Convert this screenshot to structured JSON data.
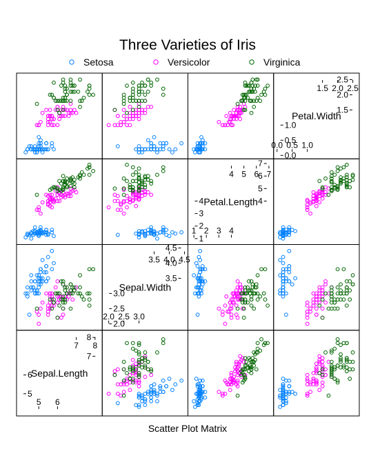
{
  "chart_data": {
    "type": "scatter",
    "title": "Three Varieties of Iris",
    "subtitle": "Scatter Plot Matrix",
    "legend": {
      "position": "top",
      "entries": [
        {
          "name": "Setosa",
          "color": "#0080ff"
        },
        {
          "name": "Versicolor",
          "color": "#ff00ff"
        },
        {
          "name": "Virginica",
          "color": "#006400"
        }
      ]
    },
    "variables": [
      {
        "name": "Sepal.Length",
        "range": [
          4.0,
          8.2
        ],
        "diag_ticks_low": [
          "5",
          "6"
        ],
        "diag_ticks_high": [
          "7",
          "8"
        ],
        "axis_ticks": [
          "5",
          "6",
          "7",
          "8"
        ]
      },
      {
        "name": "Sepal.Width",
        "range": [
          1.9,
          4.5
        ],
        "diag_ticks_low": [
          "2.0",
          "2.5",
          "3.0"
        ],
        "diag_ticks_high": [
          "3.5",
          "4.0",
          "4.5"
        ],
        "axis_ticks": [
          "2.0",
          "2.5",
          "3.0",
          "3.5",
          "4.0",
          "4.5"
        ]
      },
      {
        "name": "Petal.Length",
        "range": [
          0.8,
          7.1
        ],
        "diag_ticks_low": [
          "1",
          "2",
          "3",
          "4"
        ],
        "diag_ticks_high": [
          "4",
          "5",
          "6",
          "7"
        ],
        "axis_ticks": [
          "1",
          "2",
          "3",
          "4",
          "5",
          "6",
          "7"
        ]
      },
      {
        "name": "Petal.Width",
        "range": [
          0.0,
          2.6
        ],
        "diag_ticks_low": [
          "0.0",
          "0.5",
          "1.0"
        ],
        "diag_ticks_high": [
          "1.5",
          "2.0",
          "2.5"
        ],
        "axis_ticks": [
          "0.0",
          "0.5",
          "1.0",
          "1.5",
          "2.0",
          "2.5"
        ]
      }
    ],
    "series": [
      {
        "name": "Setosa",
        "color": "#0080ff",
        "points": [
          [
            5.1,
            3.5,
            1.4,
            0.2
          ],
          [
            4.9,
            3.0,
            1.4,
            0.2
          ],
          [
            4.7,
            3.2,
            1.3,
            0.2
          ],
          [
            4.6,
            3.1,
            1.5,
            0.2
          ],
          [
            5.0,
            3.6,
            1.4,
            0.2
          ],
          [
            5.4,
            3.9,
            1.7,
            0.4
          ],
          [
            4.6,
            3.4,
            1.4,
            0.3
          ],
          [
            5.0,
            3.4,
            1.5,
            0.2
          ],
          [
            4.4,
            2.9,
            1.4,
            0.2
          ],
          [
            4.9,
            3.1,
            1.5,
            0.1
          ],
          [
            5.4,
            3.7,
            1.5,
            0.2
          ],
          [
            4.8,
            3.4,
            1.6,
            0.2
          ],
          [
            4.8,
            3.0,
            1.4,
            0.1
          ],
          [
            4.3,
            3.0,
            1.1,
            0.1
          ],
          [
            5.8,
            4.0,
            1.2,
            0.2
          ],
          [
            5.7,
            4.4,
            1.5,
            0.4
          ],
          [
            5.4,
            3.9,
            1.3,
            0.4
          ],
          [
            5.1,
            3.5,
            1.4,
            0.3
          ],
          [
            5.7,
            3.8,
            1.7,
            0.3
          ],
          [
            5.1,
            3.8,
            1.5,
            0.3
          ],
          [
            5.4,
            3.4,
            1.7,
            0.2
          ],
          [
            5.1,
            3.7,
            1.5,
            0.4
          ],
          [
            4.6,
            3.6,
            1.0,
            0.2
          ],
          [
            5.1,
            3.3,
            1.7,
            0.5
          ],
          [
            4.8,
            3.4,
            1.9,
            0.2
          ],
          [
            5.0,
            3.0,
            1.6,
            0.2
          ],
          [
            5.0,
            3.4,
            1.6,
            0.4
          ],
          [
            5.2,
            3.5,
            1.5,
            0.2
          ],
          [
            5.2,
            3.4,
            1.4,
            0.2
          ],
          [
            4.7,
            3.2,
            1.6,
            0.2
          ],
          [
            4.8,
            3.1,
            1.6,
            0.2
          ],
          [
            5.4,
            3.4,
            1.5,
            0.4
          ],
          [
            5.2,
            4.1,
            1.5,
            0.1
          ],
          [
            5.5,
            4.2,
            1.4,
            0.2
          ],
          [
            4.9,
            3.1,
            1.5,
            0.2
          ],
          [
            5.0,
            3.2,
            1.2,
            0.2
          ],
          [
            5.5,
            3.5,
            1.3,
            0.2
          ],
          [
            4.9,
            3.6,
            1.4,
            0.1
          ],
          [
            4.4,
            3.0,
            1.3,
            0.2
          ],
          [
            5.1,
            3.4,
            1.5,
            0.2
          ],
          [
            5.0,
            3.5,
            1.3,
            0.3
          ],
          [
            4.5,
            2.3,
            1.3,
            0.3
          ],
          [
            4.4,
            3.2,
            1.3,
            0.2
          ],
          [
            5.0,
            3.5,
            1.6,
            0.6
          ],
          [
            5.1,
            3.8,
            1.9,
            0.4
          ],
          [
            4.8,
            3.0,
            1.4,
            0.3
          ],
          [
            5.1,
            3.8,
            1.6,
            0.2
          ],
          [
            4.6,
            3.2,
            1.4,
            0.2
          ],
          [
            5.3,
            3.7,
            1.5,
            0.2
          ],
          [
            5.0,
            3.3,
            1.4,
            0.2
          ]
        ]
      },
      {
        "name": "Versicolor",
        "color": "#ff00ff",
        "points": [
          [
            7.0,
            3.2,
            4.7,
            1.4
          ],
          [
            6.4,
            3.2,
            4.5,
            1.5
          ],
          [
            6.9,
            3.1,
            4.9,
            1.5
          ],
          [
            5.5,
            2.3,
            4.0,
            1.3
          ],
          [
            6.5,
            2.8,
            4.6,
            1.5
          ],
          [
            5.7,
            2.8,
            4.5,
            1.3
          ],
          [
            6.3,
            3.3,
            4.7,
            1.6
          ],
          [
            4.9,
            2.4,
            3.3,
            1.0
          ],
          [
            6.6,
            2.9,
            4.6,
            1.3
          ],
          [
            5.2,
            2.7,
            3.9,
            1.4
          ],
          [
            5.0,
            2.0,
            3.5,
            1.0
          ],
          [
            5.9,
            3.0,
            4.2,
            1.5
          ],
          [
            6.0,
            2.2,
            4.0,
            1.0
          ],
          [
            6.1,
            2.9,
            4.7,
            1.4
          ],
          [
            5.6,
            2.9,
            3.6,
            1.3
          ],
          [
            6.7,
            3.1,
            4.4,
            1.4
          ],
          [
            5.6,
            3.0,
            4.5,
            1.5
          ],
          [
            5.8,
            2.7,
            4.1,
            1.0
          ],
          [
            6.2,
            2.2,
            4.5,
            1.5
          ],
          [
            5.6,
            2.5,
            3.9,
            1.1
          ],
          [
            5.9,
            3.2,
            4.8,
            1.8
          ],
          [
            6.1,
            2.8,
            4.0,
            1.3
          ],
          [
            6.3,
            2.5,
            4.9,
            1.5
          ],
          [
            6.1,
            2.8,
            4.7,
            1.2
          ],
          [
            6.4,
            2.9,
            4.3,
            1.3
          ],
          [
            6.6,
            3.0,
            4.4,
            1.4
          ],
          [
            6.8,
            2.8,
            4.8,
            1.4
          ],
          [
            6.7,
            3.0,
            5.0,
            1.7
          ],
          [
            6.0,
            2.9,
            4.5,
            1.5
          ],
          [
            5.7,
            2.6,
            3.5,
            1.0
          ],
          [
            5.5,
            2.4,
            3.8,
            1.1
          ],
          [
            5.5,
            2.4,
            3.7,
            1.0
          ],
          [
            5.8,
            2.7,
            3.9,
            1.2
          ],
          [
            6.0,
            2.7,
            5.1,
            1.6
          ],
          [
            5.4,
            3.0,
            4.5,
            1.5
          ],
          [
            6.0,
            3.4,
            4.5,
            1.6
          ],
          [
            6.7,
            3.1,
            4.7,
            1.5
          ],
          [
            6.3,
            2.3,
            4.4,
            1.3
          ],
          [
            5.6,
            3.0,
            4.1,
            1.3
          ],
          [
            5.5,
            2.5,
            4.0,
            1.3
          ],
          [
            5.5,
            2.6,
            4.4,
            1.2
          ],
          [
            6.1,
            3.0,
            4.6,
            1.4
          ],
          [
            5.8,
            2.6,
            4.0,
            1.2
          ],
          [
            5.0,
            2.3,
            3.3,
            1.0
          ],
          [
            5.6,
            2.7,
            4.2,
            1.3
          ],
          [
            5.7,
            3.0,
            4.2,
            1.2
          ],
          [
            5.7,
            2.9,
            4.2,
            1.3
          ],
          [
            6.2,
            2.9,
            4.3,
            1.3
          ],
          [
            5.1,
            2.5,
            3.0,
            1.1
          ],
          [
            5.7,
            2.8,
            4.1,
            1.3
          ]
        ]
      },
      {
        "name": "Virginica",
        "color": "#006400",
        "points": [
          [
            6.3,
            3.3,
            6.0,
            2.5
          ],
          [
            5.8,
            2.7,
            5.1,
            1.9
          ],
          [
            7.1,
            3.0,
            5.9,
            2.1
          ],
          [
            6.3,
            2.9,
            5.6,
            1.8
          ],
          [
            6.5,
            3.0,
            5.8,
            2.2
          ],
          [
            7.6,
            3.0,
            6.6,
            2.1
          ],
          [
            4.9,
            2.5,
            4.5,
            1.7
          ],
          [
            7.3,
            2.9,
            6.3,
            1.8
          ],
          [
            6.7,
            2.5,
            5.8,
            1.8
          ],
          [
            7.2,
            3.6,
            6.1,
            2.5
          ],
          [
            6.5,
            3.2,
            5.1,
            2.0
          ],
          [
            6.4,
            2.7,
            5.3,
            1.9
          ],
          [
            6.8,
            3.0,
            5.5,
            2.1
          ],
          [
            5.7,
            2.5,
            5.0,
            2.0
          ],
          [
            5.8,
            2.8,
            5.1,
            2.4
          ],
          [
            6.4,
            3.2,
            5.3,
            2.3
          ],
          [
            6.5,
            3.0,
            5.5,
            1.8
          ],
          [
            7.7,
            3.8,
            6.7,
            2.2
          ],
          [
            7.7,
            2.6,
            6.9,
            2.3
          ],
          [
            6.0,
            2.2,
            5.0,
            1.5
          ],
          [
            6.9,
            3.2,
            5.7,
            2.3
          ],
          [
            5.6,
            2.8,
            4.9,
            2.0
          ],
          [
            7.7,
            2.8,
            6.7,
            2.0
          ],
          [
            6.3,
            2.7,
            4.9,
            1.8
          ],
          [
            6.7,
            3.3,
            5.7,
            2.1
          ],
          [
            7.2,
            3.2,
            6.0,
            1.8
          ],
          [
            6.2,
            2.8,
            4.8,
            1.8
          ],
          [
            6.1,
            3.0,
            4.9,
            1.8
          ],
          [
            6.4,
            2.8,
            5.6,
            2.1
          ],
          [
            7.2,
            3.0,
            5.8,
            1.6
          ],
          [
            7.4,
            2.8,
            6.1,
            1.9
          ],
          [
            7.9,
            3.8,
            6.4,
            2.0
          ],
          [
            6.4,
            2.8,
            5.6,
            2.2
          ],
          [
            6.3,
            2.8,
            5.1,
            1.5
          ],
          [
            6.1,
            2.6,
            5.6,
            1.4
          ],
          [
            7.7,
            3.0,
            6.1,
            2.3
          ],
          [
            6.3,
            3.4,
            5.6,
            2.4
          ],
          [
            6.4,
            3.1,
            5.5,
            1.8
          ],
          [
            6.0,
            3.0,
            4.8,
            1.8
          ],
          [
            6.9,
            3.1,
            5.4,
            2.1
          ],
          [
            6.7,
            3.1,
            5.6,
            2.4
          ],
          [
            6.9,
            3.1,
            5.1,
            2.3
          ],
          [
            5.8,
            2.7,
            5.1,
            1.9
          ],
          [
            6.8,
            3.2,
            5.9,
            2.3
          ],
          [
            6.7,
            3.3,
            5.7,
            2.5
          ],
          [
            6.7,
            3.0,
            5.2,
            2.3
          ],
          [
            6.3,
            2.5,
            5.0,
            1.9
          ],
          [
            6.5,
            3.0,
            5.2,
            2.0
          ],
          [
            6.2,
            3.4,
            5.4,
            2.3
          ],
          [
            5.9,
            3.0,
            5.1,
            1.8
          ]
        ]
      }
    ]
  }
}
